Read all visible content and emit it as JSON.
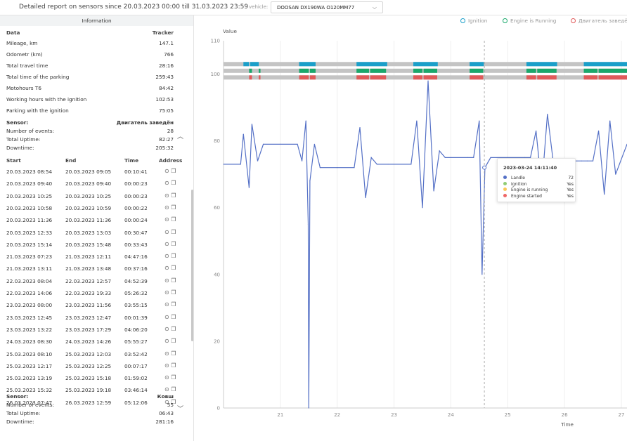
{
  "header": {
    "title": "Detailed report on sensors since 20.03.2023 00:00 till 31.03.2023 23:59",
    "vehicle_label": "vehicle:",
    "vehicle_value": "DOOSAN DX190WA О120ММ77"
  },
  "info": {
    "title": "Information",
    "col_data": "Data",
    "col_tracker": "Tracker",
    "rows": [
      {
        "label": "Mileage, km",
        "value": "147.1"
      },
      {
        "label": "Odometr (km)",
        "value": "766"
      },
      {
        "label": "Total travel time",
        "value": "28:16"
      },
      {
        "label": "Total time of the parking",
        "value": "259:43"
      },
      {
        "label": "Motohours T6",
        "value": "84:42"
      },
      {
        "label": "Working hours with the ignition",
        "value": "102:53"
      },
      {
        "label": "Parking with the ignition",
        "value": "75:05"
      }
    ]
  },
  "sensor1": {
    "sensor_label": "Sensor:",
    "sensor_name": "Двигатель заведён",
    "events_label": "Number of events:",
    "events": "28",
    "uptime_label": "Total Uptime:",
    "uptime": "82:27",
    "downtime_label": "Downtime:",
    "downtime": "205:32"
  },
  "events_table": {
    "headers": {
      "start": "Start",
      "end": "End",
      "time": "Time",
      "address": "Address"
    },
    "rows": [
      {
        "start": "20.03.2023 08:54",
        "end": "20.03.2023 09:05",
        "time": "00:10:41"
      },
      {
        "start": "20.03.2023 09:40",
        "end": "20.03.2023 09:40",
        "time": "00:00:23"
      },
      {
        "start": "20.03.2023 10:25",
        "end": "20.03.2023 10:25",
        "time": "00:00:23"
      },
      {
        "start": "20.03.2023 10:58",
        "end": "20.03.2023 10:59",
        "time": "00:00:22"
      },
      {
        "start": "20.03.2023 11:36",
        "end": "20.03.2023 11:36",
        "time": "00:00:24"
      },
      {
        "start": "20.03.2023 12:33",
        "end": "20.03.2023 13:03",
        "time": "00:30:47"
      },
      {
        "start": "20.03.2023 15:14",
        "end": "20.03.2023 15:48",
        "time": "00:33:43"
      },
      {
        "start": "21.03.2023 07:23",
        "end": "21.03.2023 12:11",
        "time": "04:47:16"
      },
      {
        "start": "21.03.2023 13:11",
        "end": "21.03.2023 13:48",
        "time": "00:37:16"
      },
      {
        "start": "22.03.2023 08:04",
        "end": "22.03.2023 12:57",
        "time": "04:52:39"
      },
      {
        "start": "22.03.2023 14:06",
        "end": "22.03.2023 19:33",
        "time": "05:26:32"
      },
      {
        "start": "23.03.2023 08:00",
        "end": "23.03.2023 11:56",
        "time": "03:55:15"
      },
      {
        "start": "23.03.2023 12:45",
        "end": "23.03.2023 12:47",
        "time": "00:01:39"
      },
      {
        "start": "23.03.2023 13:22",
        "end": "23.03.2023 17:29",
        "time": "04:06:20"
      },
      {
        "start": "24.03.2023 08:30",
        "end": "24.03.2023 14:26",
        "time": "05:55:27"
      },
      {
        "start": "25.03.2023 08:10",
        "end": "25.03.2023 12:03",
        "time": "03:52:42"
      },
      {
        "start": "25.03.2023 12:17",
        "end": "25.03.2023 12:25",
        "time": "00:07:17"
      },
      {
        "start": "25.03.2023 13:19",
        "end": "25.03.2023 15:18",
        "time": "01:59:02"
      },
      {
        "start": "25.03.2023 15:32",
        "end": "25.03.2023 19:18",
        "time": "03:46:14"
      },
      {
        "start": "26.03.2023 07:47",
        "end": "26.03.2023 12:59",
        "time": "05:12:06"
      }
    ]
  },
  "sensor2": {
    "sensor_label": "Sensor:",
    "sensor_name": "Ковш",
    "events_label": "Number of events:",
    "events": "55",
    "uptime_label": "Total Uptime:",
    "uptime": "06:43",
    "downtime_label": "Downtime:",
    "downtime": "281:16"
  },
  "legend": [
    {
      "name": "Ignition",
      "color": "#1a9fc9"
    },
    {
      "name": "Engine is Running",
      "color": "#1aa86b"
    },
    {
      "name": "Двигатель заведё",
      "color": "#e05a5a"
    }
  ],
  "tooltip": {
    "title": "2023-03-24 14:11:40",
    "rows": [
      {
        "name": "Landle",
        "value": "72",
        "color": "#5470c6"
      },
      {
        "name": "Ignition",
        "value": "Yes",
        "color": "#91cc75"
      },
      {
        "name": "Engine is running",
        "value": "Yes",
        "color": "#fac858"
      },
      {
        "name": "Engine started",
        "value": "Yes",
        "color": "#ee6666"
      }
    ]
  },
  "chart_data": {
    "type": "line",
    "ylabel": "Value",
    "xlabel": "Time",
    "ylim": [
      0,
      110
    ],
    "yticks": [
      "0",
      "20",
      "40",
      "60",
      "80",
      "100",
      "110"
    ],
    "xticks": [
      "21",
      "22",
      "23",
      "24",
      "25",
      "26",
      "27"
    ],
    "xlim": [
      20.0,
      27.1
    ],
    "grid": "vertical",
    "cursor_x": 24.59,
    "series": [
      {
        "name": "Landle",
        "color": "#5470c6",
        "x": [
          20.0,
          20.3,
          20.35,
          20.45,
          20.5,
          20.6,
          20.7,
          21.0,
          21.3,
          21.38,
          21.45,
          21.49,
          21.5,
          21.52,
          21.6,
          21.7,
          22.0,
          22.3,
          22.4,
          22.5,
          22.6,
          22.7,
          22.9,
          23.0,
          23.3,
          23.4,
          23.5,
          23.6,
          23.7,
          23.8,
          23.9,
          24.0,
          24.3,
          24.4,
          24.5,
          24.55,
          24.6,
          24.7,
          25.0,
          25.3,
          25.4,
          25.5,
          25.6,
          25.7,
          25.8,
          26.0,
          26.3,
          26.4,
          26.5,
          26.6,
          26.7,
          26.8,
          26.9,
          27.1
        ],
        "y": [
          73,
          73,
          82,
          66,
          85,
          74,
          79,
          79,
          79,
          74,
          86,
          55,
          0,
          68,
          79,
          72,
          72,
          72,
          84,
          63,
          75,
          73,
          73,
          73,
          73,
          86,
          60,
          98,
          65,
          77,
          75,
          75,
          75,
          75,
          86,
          40,
          72,
          75,
          75,
          75,
          75,
          83,
          66,
          88,
          74,
          74,
          74,
          74,
          74,
          83,
          64,
          86,
          70,
          79
        ]
      }
    ],
    "status_bars": [
      {
        "name": "Ignition",
        "value": 103,
        "color": "#1a9fc9",
        "segments": [
          [
            20.35,
            20.45
          ],
          [
            20.47,
            20.62
          ],
          [
            21.33,
            21.62
          ],
          [
            22.34,
            22.88
          ],
          [
            23.34,
            23.77
          ],
          [
            24.33,
            24.58
          ],
          [
            25.33,
            25.87
          ],
          [
            26.34,
            27.1
          ]
        ]
      },
      {
        "name": "Engine is Running",
        "value": 101,
        "color": "#1aa86b",
        "segments": [
          [
            20.45,
            20.5
          ],
          [
            20.62,
            20.65
          ],
          [
            21.33,
            21.5
          ],
          [
            21.52,
            21.62
          ],
          [
            22.34,
            22.56
          ],
          [
            22.58,
            22.86
          ],
          [
            23.34,
            23.5
          ],
          [
            23.52,
            23.76
          ],
          [
            24.33,
            24.57
          ],
          [
            25.33,
            25.5
          ],
          [
            25.52,
            25.86
          ],
          [
            26.34,
            26.58
          ],
          [
            26.6,
            27.1
          ]
        ]
      },
      {
        "name": "Двигатель заведё",
        "value": 99,
        "color": "#e05a5a",
        "segments": [
          [
            20.45,
            20.5
          ],
          [
            20.62,
            20.65
          ],
          [
            21.33,
            21.5
          ],
          [
            21.52,
            21.62
          ],
          [
            22.34,
            22.56
          ],
          [
            22.58,
            22.86
          ],
          [
            23.34,
            23.5
          ],
          [
            23.52,
            23.76
          ],
          [
            24.33,
            24.57
          ],
          [
            25.33,
            25.5
          ],
          [
            25.52,
            25.86
          ],
          [
            26.34,
            26.58
          ],
          [
            26.6,
            27.1
          ]
        ]
      }
    ]
  }
}
